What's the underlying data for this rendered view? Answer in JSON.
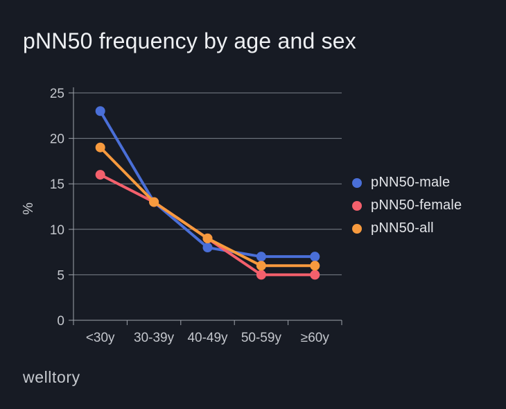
{
  "title": "pNN50 frequency by age and sex",
  "brand": "welltory",
  "chart_data": {
    "type": "line",
    "title": "pNN50 frequency by age and sex",
    "categories": [
      "<30y",
      "30-39y",
      "40-49y",
      "50-59y",
      "≥60y"
    ],
    "series": [
      {
        "name": "pNN50-male",
        "color": "#4A6FD8",
        "values": [
          23,
          13,
          8,
          7,
          7
        ]
      },
      {
        "name": "pNN50-female",
        "color": "#F4606C",
        "values": [
          16,
          13,
          9,
          5,
          5
        ]
      },
      {
        "name": "pNN50-all",
        "color": "#F79A3E",
        "values": [
          19,
          13,
          9,
          6,
          6
        ]
      }
    ],
    "xlabel": "",
    "ylabel": "%",
    "ylim": [
      0,
      25
    ],
    "yticks": [
      0,
      5,
      10,
      15,
      20,
      25
    ],
    "grid": true,
    "legend_position": "right",
    "marker": "circle"
  },
  "colors": {
    "background": "#171B24",
    "title_text": "#EEF0F3",
    "axis": "#9FA4AC",
    "grid": "#7E838C",
    "tick_label": "#C4C7CD",
    "legend_text": "#E3E5E9",
    "brand_text": "#C6C9CE"
  }
}
